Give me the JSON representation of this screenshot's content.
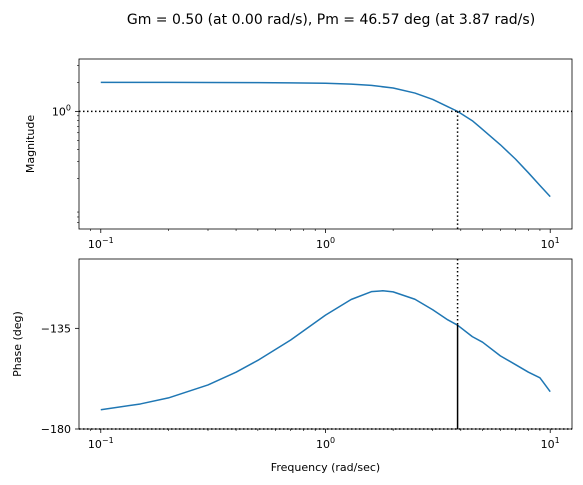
{
  "title": "Gm = 0.50 (at 0.00 rad/s), Pm = 46.57 deg (at 3.87 rad/s)",
  "chart_data": [
    {
      "type": "line",
      "name": "magnitude-plot",
      "ylabel": "Magnitude",
      "xlabel": "",
      "xscale": "log",
      "yscale": "log",
      "xlim": [
        0.08,
        12.5
      ],
      "ylim": [
        0.06,
        3.5
      ],
      "x_ticks": [
        {
          "value": 0.1,
          "base": "10",
          "exp": "−1"
        },
        {
          "value": 1,
          "base": "10",
          "exp": "0"
        },
        {
          "value": 10,
          "base": "10",
          "exp": "1"
        }
      ],
      "y_ticks": [
        {
          "value": 1,
          "base": "10",
          "exp": "0"
        }
      ],
      "gain_crossover_freq": 3.87,
      "reference_level": 1,
      "series": [
        {
          "color": "#1f77b4",
          "x": [
            0.1,
            0.2,
            0.3,
            0.5,
            0.7,
            1.0,
            1.3,
            1.6,
            2.0,
            2.5,
            3.0,
            3.5,
            3.87,
            4.5,
            5.0,
            6.0,
            7.0,
            8.0,
            9.0,
            10.0
          ],
          "y": [
            2.0,
            2.0,
            1.996,
            1.99,
            1.98,
            1.96,
            1.92,
            1.86,
            1.75,
            1.55,
            1.33,
            1.12,
            1.0,
            0.8,
            0.65,
            0.45,
            0.32,
            0.23,
            0.17,
            0.13
          ]
        }
      ]
    },
    {
      "type": "line",
      "name": "phase-plot",
      "ylabel": "Phase (deg)",
      "xlabel": "Frequency (rad/sec)",
      "xscale": "log",
      "xlim": [
        0.08,
        12.5
      ],
      "ylim": [
        -180,
        -104
      ],
      "x_ticks": [
        {
          "value": 0.1,
          "base": "10",
          "exp": "−1"
        },
        {
          "value": 1,
          "base": "10",
          "exp": "0"
        },
        {
          "value": 10,
          "base": "10",
          "exp": "1"
        }
      ],
      "y_ticks": [
        {
          "value": -135,
          "label": "−135"
        },
        {
          "value": -180,
          "label": "−180"
        }
      ],
      "gain_crossover_freq": 3.87,
      "reference_level": -180,
      "phase_margin_bar": [
        -180,
        -133.43
      ],
      "series": [
        {
          "color": "#1f77b4",
          "x": [
            0.1,
            0.15,
            0.2,
            0.3,
            0.4,
            0.5,
            0.7,
            1.0,
            1.3,
            1.6,
            1.8,
            2.0,
            2.5,
            3.0,
            3.5,
            3.87,
            4.5,
            5.0,
            6.0,
            7.0,
            8.0,
            9.0,
            10.0
          ],
          "y": [
            -171.4,
            -168.8,
            -166.1,
            -160.3,
            -154.6,
            -149.3,
            -140.2,
            -129.1,
            -122.1,
            -118.6,
            -118.2,
            -118.7,
            -122.0,
            -126.7,
            -131.2,
            -133.6,
            -138.7,
            -141.2,
            -147.3,
            -151.2,
            -154.6,
            -157.1,
            -163.3
          ]
        }
      ]
    }
  ]
}
